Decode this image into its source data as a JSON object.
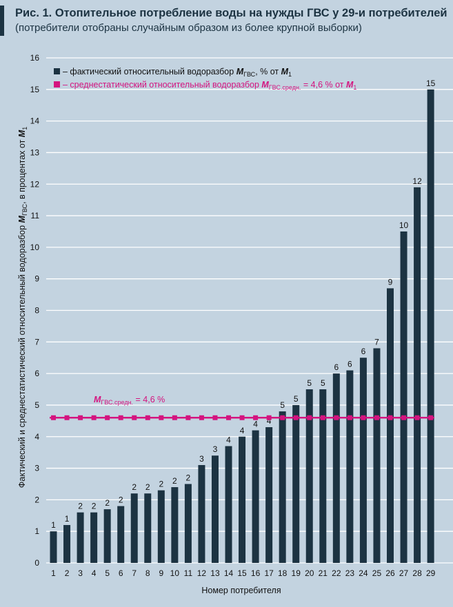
{
  "header": {
    "title": "Рис. 1. Отопительное потребление воды на нужды ГВС у 29-и потребителей",
    "subtitle": "(потребители отобраны случайным образом из более крупной выборки)"
  },
  "colors": {
    "bar": "#1c3342",
    "mean": "#d4147f",
    "grid": "#ffffff",
    "background": "#c3d3e0"
  },
  "legend": {
    "bar": {
      "prefix": "– фактический относительный водоразбор ",
      "sym": "M",
      "sub": "ГВС",
      "mid": ", % от ",
      "sym2": "M",
      "sub2": "1"
    },
    "mean": {
      "prefix": "– среднестатический относительный водоразбор ",
      "sym": "M",
      "sub": "ГВС.средн.",
      "mid": " = 4,6 % от ",
      "sym2": "M",
      "sub2": "1"
    }
  },
  "mean_label": {
    "sym": "M",
    "sub": "ГВС.средн.",
    "rest": " = 4,6 %"
  },
  "chart_data": {
    "type": "bar",
    "title": "Отопительное потребление воды на нужды ГВС у 29-и потребителей",
    "xlabel": "Номер потребителя",
    "ylabel": {
      "before": "Фактический и среднестатистический относительный водоразбор ",
      "sym": "M",
      "sub": "ГВС",
      "after": ", в процентах от ",
      "sym2": "M",
      "sub2": "1"
    },
    "categories": [
      "1",
      "2",
      "3",
      "4",
      "5",
      "6",
      "7",
      "8",
      "9",
      "10",
      "11",
      "12",
      "13",
      "14",
      "15",
      "16",
      "17",
      "18",
      "19",
      "20",
      "21",
      "22",
      "23",
      "24",
      "25",
      "26",
      "27",
      "28",
      "29"
    ],
    "values": [
      1.0,
      1.2,
      1.6,
      1.6,
      1.7,
      1.8,
      2.2,
      2.2,
      2.3,
      2.4,
      2.5,
      3.1,
      3.4,
      3.7,
      4.0,
      4.2,
      4.3,
      4.8,
      5.0,
      5.5,
      5.5,
      6.0,
      6.1,
      6.5,
      6.8,
      8.7,
      10.5,
      11.9,
      15.0
    ],
    "value_labels": [
      "1",
      "1",
      "2",
      "2",
      "2",
      "2",
      "2",
      "2",
      "2",
      "2",
      "2",
      "3",
      "3",
      "4",
      "4",
      "4",
      "4",
      "5",
      "5",
      "5",
      "5",
      "6",
      "6",
      "6",
      "7",
      "9",
      "10",
      "12",
      "15"
    ],
    "mean": 4.6,
    "ylim": [
      0,
      16
    ],
    "yticks": [
      0,
      1,
      2,
      3,
      4,
      5,
      6,
      7,
      8,
      9,
      10,
      11,
      12,
      13,
      14,
      15,
      16
    ],
    "grid": true,
    "legend_position": "top-left"
  }
}
